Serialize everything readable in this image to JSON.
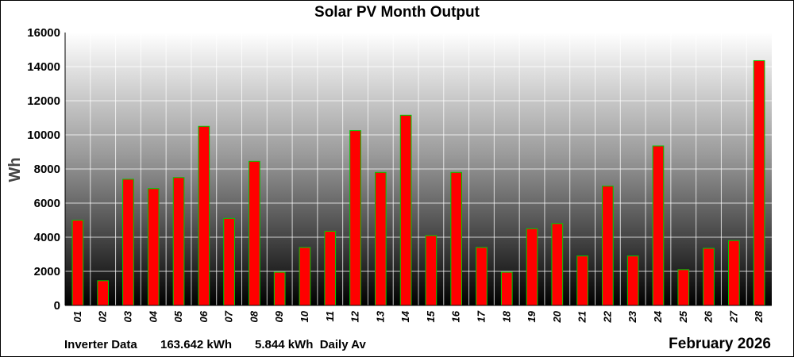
{
  "chart_data": {
    "type": "bar",
    "title": "Solar PV Month Output",
    "ylabel": "Wh",
    "xlabel": "",
    "ylim": [
      0,
      16000
    ],
    "yticks": [
      "0",
      "2000",
      "4000",
      "6000",
      "8000",
      "10000",
      "12000",
      "14000",
      "16000"
    ],
    "grid": true,
    "categories": [
      "01",
      "02",
      "03",
      "04",
      "05",
      "06",
      "07",
      "08",
      "09",
      "10",
      "11",
      "12",
      "13",
      "14",
      "15",
      "16",
      "17",
      "18",
      "19",
      "20",
      "21",
      "22",
      "23",
      "24",
      "25",
      "26",
      "27",
      "28"
    ],
    "values": [
      5000,
      1450,
      7400,
      6850,
      7500,
      10500,
      5100,
      8450,
      1950,
      3400,
      4350,
      10250,
      7800,
      11150,
      4100,
      7800,
      3400,
      1950,
      4500,
      4800,
      2900,
      7000,
      2900,
      9350,
      2100,
      3350,
      3800,
      14350
    ],
    "bar_fill": "#ff0000",
    "bar_stroke": "#00cc00"
  },
  "footer": {
    "source": "Inverter Data",
    "total": "163.642 kWh",
    "daily_average": "5.844 kWh  Daily Av",
    "period": "February 2026"
  }
}
